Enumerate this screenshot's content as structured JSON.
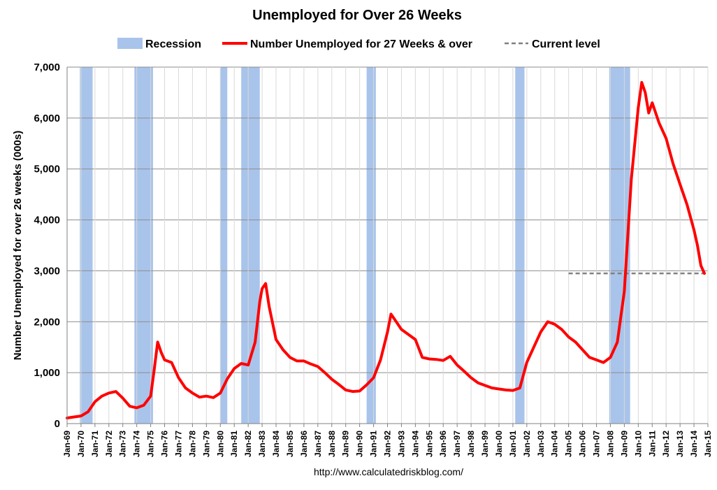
{
  "chart_data": {
    "type": "line",
    "title": "Unemployed for Over 26 Weeks",
    "ylabel": "Number Unemployed for over 26 weeks (000s)",
    "xlabel": "",
    "ylim": [
      0,
      7000
    ],
    "y_ticks": [
      "0",
      "1,000",
      "2,000",
      "3,000",
      "4,000",
      "5,000",
      "6,000",
      "7,000"
    ],
    "y_tick_values": [
      0,
      1000,
      2000,
      3000,
      4000,
      5000,
      6000,
      7000
    ],
    "x_range": [
      1969,
      2015
    ],
    "x_tick_labels": [
      "Jan-69",
      "Jan-70",
      "Jan-71",
      "Jan-72",
      "Jan-73",
      "Jan-74",
      "Jan-75",
      "Jan-76",
      "Jan-77",
      "Jan-78",
      "Jan-79",
      "Jan-80",
      "Jan-81",
      "Jan-82",
      "Jan-83",
      "Jan-84",
      "Jan-85",
      "Jan-86",
      "Jan-87",
      "Jan-88",
      "Jan-89",
      "Jan-90",
      "Jan-91",
      "Jan-92",
      "Jan-93",
      "Jan-94",
      "Jan-95",
      "Jan-96",
      "Jan-97",
      "Jan-98",
      "Jan-99",
      "Jan-00",
      "Jan-01",
      "Jan-02",
      "Jan-03",
      "Jan-04",
      "Jan-05",
      "Jan-06",
      "Jan-07",
      "Jan-08",
      "Jan-09",
      "Jan-10",
      "Jan-11",
      "Jan-12",
      "Jan-13",
      "Jan-14",
      "Jan-15"
    ],
    "grid": true,
    "legend_position": "top",
    "legend": [
      {
        "label": "Recession",
        "kind": "band",
        "color": "#a9c4eb"
      },
      {
        "label": "Number Unemployed for 27 Weeks & over",
        "kind": "line",
        "color": "#ff0000"
      },
      {
        "label": "Current level",
        "kind": "dashed",
        "color": "#808080"
      }
    ],
    "recessions": [
      {
        "start": "Dec-69",
        "end": "Nov-70"
      },
      {
        "start": "Nov-73",
        "end": "Mar-75"
      },
      {
        "start": "Jan-80",
        "end": "Jul-80"
      },
      {
        "start": "Jul-81",
        "end": "Nov-82"
      },
      {
        "start": "Jul-90",
        "end": "Mar-91"
      },
      {
        "start": "Mar-01",
        "end": "Nov-01"
      },
      {
        "start": "Dec-07",
        "end": "Jun-09"
      }
    ],
    "series": [
      {
        "name": "Number Unemployed for 27 Weeks & over",
        "color": "#ff0000",
        "x": [
          "Jan-69",
          "Jul-69",
          "Jan-70",
          "Jul-70",
          "Jan-71",
          "Jul-71",
          "Jan-72",
          "Jul-72",
          "Jan-73",
          "Jul-73",
          "Jan-74",
          "Jul-74",
          "Jan-75",
          "Apr-75",
          "Jul-75",
          "Oct-75",
          "Jan-76",
          "Jul-76",
          "Jan-77",
          "Jul-77",
          "Jan-78",
          "Jul-78",
          "Jan-79",
          "Jul-79",
          "Jan-80",
          "Jul-80",
          "Jan-81",
          "Jul-81",
          "Jan-82",
          "Jul-82",
          "Nov-82",
          "Jan-83",
          "Apr-83",
          "Jul-83",
          "Jan-84",
          "Jul-84",
          "Jan-85",
          "Jul-85",
          "Jan-86",
          "Jul-86",
          "Jan-87",
          "Jul-87",
          "Jan-88",
          "Jul-88",
          "Jan-89",
          "Jul-89",
          "Jan-90",
          "Jul-90",
          "Jan-91",
          "Jul-91",
          "Jan-92",
          "Apr-92",
          "Jul-92",
          "Jan-93",
          "Jul-93",
          "Jan-94",
          "Jul-94",
          "Jan-95",
          "Jul-95",
          "Jan-96",
          "Jul-96",
          "Jan-97",
          "Jul-97",
          "Jan-98",
          "Jul-98",
          "Jan-99",
          "Jul-99",
          "Jan-00",
          "Jul-00",
          "Jan-01",
          "Jul-01",
          "Jan-02",
          "Jul-02",
          "Jan-03",
          "Jul-03",
          "Jan-04",
          "Jul-04",
          "Jan-05",
          "Jul-05",
          "Jan-06",
          "Jul-06",
          "Jan-07",
          "Jul-07",
          "Jan-08",
          "Jul-08",
          "Jan-09",
          "Jul-09",
          "Jan-10",
          "Apr-10",
          "Jul-10",
          "Oct-10",
          "Jan-11",
          "Jul-11",
          "Jan-12",
          "Jul-12",
          "Jan-13",
          "Jul-13",
          "Jan-14",
          "Apr-14",
          "Jul-14",
          "Oct-14"
        ],
        "values": [
          110,
          130,
          150,
          230,
          430,
          540,
          600,
          630,
          500,
          340,
          310,
          360,
          540,
          1050,
          1600,
          1400,
          1250,
          1200,
          900,
          700,
          600,
          520,
          540,
          510,
          600,
          880,
          1080,
          1180,
          1150,
          1600,
          2400,
          2650,
          2750,
          2300,
          1650,
          1450,
          1300,
          1230,
          1230,
          1170,
          1120,
          1000,
          870,
          770,
          660,
          630,
          640,
          760,
          900,
          1250,
          1800,
          2150,
          2050,
          1850,
          1750,
          1650,
          1300,
          1270,
          1260,
          1240,
          1320,
          1150,
          1030,
          900,
          800,
          750,
          700,
          680,
          660,
          650,
          700,
          1200,
          1500,
          1800,
          2000,
          1950,
          1850,
          1700,
          1600,
          1450,
          1300,
          1250,
          1200,
          1300,
          1600,
          2600,
          4800,
          6200,
          6700,
          6500,
          6100,
          6300,
          5900,
          5600,
          5100,
          4700,
          4300,
          3800,
          3500,
          3100,
          2950
        ]
      }
    ],
    "current_level": {
      "value": 2950,
      "x_start": "Jan-05",
      "x_end": "Jan-15"
    },
    "footer": "http://www.calculatedriskblog.com/"
  }
}
